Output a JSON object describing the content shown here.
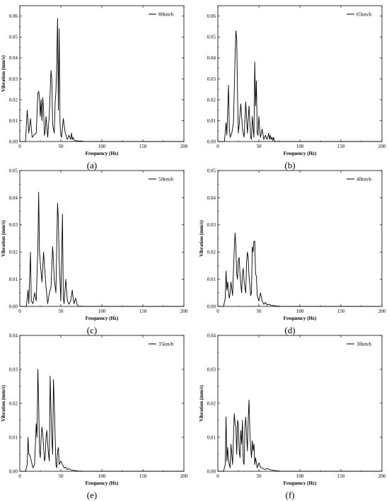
{
  "chart_data": [
    {
      "type": "line",
      "panel_label": "(a)",
      "xlabel": "Frequency (Hz)",
      "ylabel": "Vibration (mm/s)",
      "xlim": [
        0,
        200
      ],
      "ylim": [
        0,
        0.065
      ],
      "xticks": [
        "0",
        "50",
        "100",
        "150",
        "200"
      ],
      "yticks": [
        "0.00",
        "0.01",
        "0.02",
        "0.03",
        "0.04",
        "0.05",
        "0.06"
      ],
      "legend": {
        "position": "top-right"
      },
      "series": [
        {
          "name": "80km/h",
          "x": [
            0,
            7,
            9,
            11,
            13,
            15,
            17,
            20,
            22,
            23,
            24,
            25,
            26,
            27,
            28,
            29,
            30,
            31,
            32,
            34,
            36,
            38,
            39,
            40,
            42,
            43,
            44,
            45,
            46,
            47,
            48,
            49,
            50,
            51,
            53,
            55,
            57,
            58,
            60,
            62,
            63,
            64,
            65,
            66,
            67,
            70,
            80,
            120,
            200
          ],
          "y": [
            0,
            0,
            0.015,
            0.004,
            0.011,
            0.002,
            0.003,
            0.004,
            0.023,
            0.024,
            0.021,
            0.012,
            0.02,
            0.01,
            0.021,
            0.015,
            0.003,
            0.005,
            0.012,
            0.002,
            0.013,
            0.034,
            0.03,
            0.008,
            0.004,
            0.018,
            0.024,
            0.037,
            0.059,
            0.015,
            0.054,
            0.009,
            0.003,
            0.002,
            0.011,
            0.005,
            0.002,
            0.001,
            0.003,
            0.001,
            0.004,
            0.001,
            0.002,
            0.001,
            0.0005,
            0.0003,
            0,
            0,
            0
          ]
        }
      ]
    },
    {
      "type": "line",
      "panel_label": "(b)",
      "xlabel": "Frequency (Hz)",
      "ylabel": "",
      "xlim": [
        0,
        200
      ],
      "ylim": [
        0,
        0.065
      ],
      "xticks": [
        "0",
        "50",
        "100",
        "150",
        "200"
      ],
      "yticks": [
        "0.00",
        "0.01",
        "0.02",
        "0.03",
        "0.04",
        "0.05",
        "0.06"
      ],
      "legend": {
        "position": "top-right"
      },
      "series": [
        {
          "name": "65km/h",
          "x": [
            0,
            8,
            10,
            11,
            13,
            14,
            15,
            17,
            19,
            21,
            22,
            23,
            24,
            25,
            26,
            28,
            30,
            32,
            34,
            36,
            38,
            40,
            41,
            42,
            44,
            45,
            46,
            47,
            48,
            49,
            50,
            51,
            52,
            54,
            56,
            58,
            60,
            62,
            63,
            64,
            65,
            66,
            67,
            68,
            69,
            70,
            72,
            80,
            200
          ],
          "y": [
            0,
            0,
            0.009,
            0.003,
            0.027,
            0.006,
            0.002,
            0.004,
            0.009,
            0.04,
            0.053,
            0.049,
            0.022,
            0.004,
            0.008,
            0.018,
            0.006,
            0.002,
            0.019,
            0.004,
            0.017,
            0.002,
            0.001,
            0.012,
            0.002,
            0.038,
            0.017,
            0.029,
            0.004,
            0.003,
            0.012,
            0.006,
            0.002,
            0.006,
            0.001,
            0.003,
            0.001,
            0.004,
            0.001,
            0.003,
            0.001,
            0.002,
            0.0005,
            0.002,
            0.0003,
            0,
            0,
            0,
            0
          ]
        }
      ]
    },
    {
      "type": "line",
      "panel_label": "(c)",
      "xlabel": "Frequency (Hz)",
      "ylabel": "Vibration (mm/s)",
      "xlim": [
        0,
        200
      ],
      "ylim": [
        0,
        0.05
      ],
      "xticks": [
        "0",
        "50",
        "100",
        "150",
        "200"
      ],
      "yticks": [
        "0.00",
        "0.01",
        "0.02",
        "0.03",
        "0.04",
        "0.05"
      ],
      "legend": {
        "position": "top-right"
      },
      "series": [
        {
          "name": "50km/h",
          "x": [
            0,
            8,
            10,
            11,
            13,
            14,
            16,
            18,
            20,
            22,
            23,
            24,
            25,
            27,
            29,
            30,
            32,
            34,
            36,
            38,
            40,
            41,
            42,
            44,
            46,
            47,
            48,
            50,
            52,
            53,
            54,
            56,
            58,
            60,
            62,
            64,
            65,
            66,
            68,
            70,
            72,
            80,
            200
          ],
          "y": [
            0,
            0,
            0.006,
            0.001,
            0.02,
            0.002,
            0.001,
            0.005,
            0.002,
            0.021,
            0.042,
            0.02,
            0.016,
            0.009,
            0.02,
            0.015,
            0.007,
            0.001,
            0.005,
            0.007,
            0.022,
            0.017,
            0.01,
            0.005,
            0.038,
            0.032,
            0.017,
            0.002,
            0.034,
            0.003,
            0.001,
            0.01,
            0.002,
            0.0008,
            0.002,
            0.006,
            0.003,
            0.001,
            0.003,
            0.0005,
            0,
            0,
            0
          ]
        }
      ]
    },
    {
      "type": "line",
      "panel_label": "(d)",
      "xlabel": "Frequency (Hz)",
      "ylabel": "Vibration (mm/s)",
      "xlim": [
        0,
        200
      ],
      "ylim": [
        0,
        0.05
      ],
      "xticks": [
        "0",
        "50",
        "100",
        "150",
        "200"
      ],
      "yticks": [
        "0.00",
        "0.01",
        "0.02",
        "0.03",
        "0.04",
        "0.05"
      ],
      "legend": {
        "position": "top-right"
      },
      "series": [
        {
          "name": "40km/h",
          "x": [
            0,
            7,
            9,
            10,
            11,
            12,
            13,
            14,
            15,
            16,
            18,
            20,
            21,
            22,
            23,
            24,
            25,
            26,
            27,
            28,
            29,
            30,
            31,
            32,
            33,
            34,
            35,
            36,
            37,
            38,
            39,
            40,
            41,
            42,
            43,
            44,
            45,
            46,
            47,
            48,
            50,
            52,
            54,
            56,
            58,
            60,
            62,
            65,
            68,
            70,
            75,
            80,
            200
          ],
          "y": [
            0,
            0,
            0.003,
            0.013,
            0.006,
            0.009,
            0.005,
            0.003,
            0.005,
            0.009,
            0.004,
            0.021,
            0.027,
            0.022,
            0.012,
            0.01,
            0.017,
            0.018,
            0.012,
            0.008,
            0.005,
            0.012,
            0.014,
            0.009,
            0.007,
            0.005,
            0.016,
            0.02,
            0.018,
            0.011,
            0.008,
            0.004,
            0.005,
            0.022,
            0.02,
            0.024,
            0.024,
            0.012,
            0.011,
            0.004,
            0.002,
            0.005,
            0.002,
            0.0008,
            0.0015,
            0.0005,
            0.0008,
            0.0004,
            0.0003,
            0.0002,
            0,
            0,
            0
          ]
        }
      ]
    },
    {
      "type": "line",
      "panel_label": "(e)",
      "xlabel": "Frequency (Hz)",
      "ylabel": "Vibration (mm/s)",
      "xlim": [
        0,
        200
      ],
      "ylim": [
        0,
        0.04
      ],
      "xticks": [
        "0",
        "50",
        "100",
        "150",
        "200"
      ],
      "yticks": [
        "0.00",
        "0.01",
        "0.02",
        "0.03",
        "0.04"
      ],
      "legend": {
        "position": "top-right"
      },
      "series": [
        {
          "name": "35km/h",
          "x": [
            0,
            7,
            9,
            10,
            11,
            12,
            13,
            14,
            15,
            16,
            18,
            20,
            21,
            22,
            23,
            24,
            25,
            26,
            27,
            28,
            29,
            30,
            31,
            32,
            33,
            34,
            35,
            36,
            37,
            38,
            39,
            40,
            41,
            42,
            43,
            44,
            45,
            46,
            47,
            48,
            50,
            52,
            54,
            56,
            58,
            60,
            62,
            65,
            68,
            70,
            75,
            80,
            200
          ],
          "y": [
            0,
            0,
            0.002,
            0.01,
            0.005,
            0.005,
            0.004,
            0.003,
            0.002,
            0.001,
            0.002,
            0.014,
            0.01,
            0.03,
            0.02,
            0.006,
            0.004,
            0.01,
            0.013,
            0.011,
            0.007,
            0.003,
            0.004,
            0.01,
            0.012,
            0.008,
            0.005,
            0.003,
            0.028,
            0.018,
            0.01,
            0.005,
            0.027,
            0.02,
            0.011,
            0.002,
            0.001,
            0.006,
            0.007,
            0.002,
            0.003,
            0.002,
            0.001,
            0.0012,
            0.0005,
            0.0008,
            0.0004,
            0.0003,
            0.0002,
            0.0001,
            0,
            0,
            0
          ]
        }
      ]
    },
    {
      "type": "line",
      "panel_label": "(f)",
      "xlabel": "Frequency (Hz)",
      "ylabel": "Vibration (mm/s)",
      "xlim": [
        0,
        200
      ],
      "ylim": [
        0,
        0.04
      ],
      "xticks": [
        "0",
        "50",
        "100",
        "150",
        "200"
      ],
      "yticks": [
        "0.00",
        "0.01",
        "0.02",
        "0.03",
        "0.04"
      ],
      "legend": {
        "position": "top-right"
      },
      "series": [
        {
          "name": "30km/h",
          "x": [
            0,
            7,
            9,
            10,
            11,
            12,
            13,
            14,
            15,
            16,
            18,
            20,
            21,
            22,
            23,
            24,
            25,
            26,
            27,
            28,
            29,
            30,
            31,
            32,
            33,
            34,
            35,
            36,
            37,
            38,
            39,
            40,
            41,
            42,
            43,
            44,
            45,
            46,
            47,
            48,
            50,
            52,
            54,
            56,
            58,
            60,
            62,
            65,
            68,
            70,
            75,
            80,
            200
          ],
          "y": [
            0,
            0,
            0.002,
            0.016,
            0.003,
            0.007,
            0.003,
            0.002,
            0.001,
            0.008,
            0.002,
            0.017,
            0.014,
            0.013,
            0.005,
            0.015,
            0.014,
            0.006,
            0.004,
            0.012,
            0.008,
            0.015,
            0.003,
            0.002,
            0.013,
            0.016,
            0.011,
            0.006,
            0.015,
            0.021,
            0.012,
            0.007,
            0.004,
            0.009,
            0.006,
            0.008,
            0.002,
            0.004,
            0.0025,
            0.001,
            0.0025,
            0.0012,
            0.0009,
            0.0007,
            0.0005,
            0.0009,
            0.0006,
            0.0004,
            0.0003,
            0.0002,
            0,
            0,
            0
          ]
        }
      ]
    }
  ]
}
